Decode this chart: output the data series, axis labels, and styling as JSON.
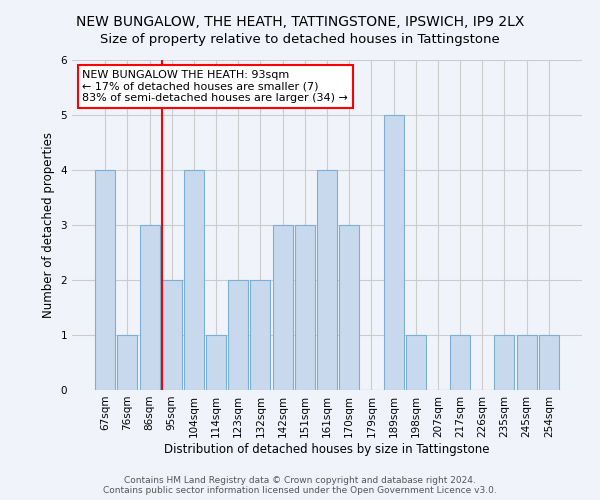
{
  "title": "NEW BUNGALOW, THE HEATH, TATTINGSTONE, IPSWICH, IP9 2LX",
  "subtitle": "Size of property relative to detached houses in Tattingstone",
  "xlabel": "Distribution of detached houses by size in Tattingstone",
  "ylabel": "Number of detached properties",
  "categories": [
    "67sqm",
    "76sqm",
    "86sqm",
    "95sqm",
    "104sqm",
    "114sqm",
    "123sqm",
    "132sqm",
    "142sqm",
    "151sqm",
    "161sqm",
    "170sqm",
    "179sqm",
    "189sqm",
    "198sqm",
    "207sqm",
    "217sqm",
    "226sqm",
    "235sqm",
    "245sqm",
    "254sqm"
  ],
  "values": [
    4,
    1,
    3,
    2,
    4,
    1,
    2,
    2,
    3,
    3,
    4,
    3,
    0,
    5,
    1,
    0,
    1,
    0,
    1,
    1,
    1
  ],
  "bar_color": "#c9d9ed",
  "bar_edge_color": "#7bafd4",
  "annotation_text": "NEW BUNGALOW THE HEATH: 93sqm\n← 17% of detached houses are smaller (7)\n83% of semi-detached houses are larger (34) →",
  "annotation_box_color": "white",
  "annotation_box_edge_color": "red",
  "vline_color": "red",
  "vline_x_index": 3,
  "ylim": [
    0,
    6
  ],
  "yticks": [
    0,
    1,
    2,
    3,
    4,
    5,
    6
  ],
  "footer_line1": "Contains HM Land Registry data © Crown copyright and database right 2024.",
  "footer_line2": "Contains public sector information licensed under the Open Government Licence v3.0.",
  "title_fontsize": 10,
  "xlabel_fontsize": 8.5,
  "ylabel_fontsize": 8.5,
  "tick_fontsize": 7.5,
  "annotation_fontsize": 8,
  "footer_fontsize": 6.5,
  "bg_color": "#f0f4fa"
}
